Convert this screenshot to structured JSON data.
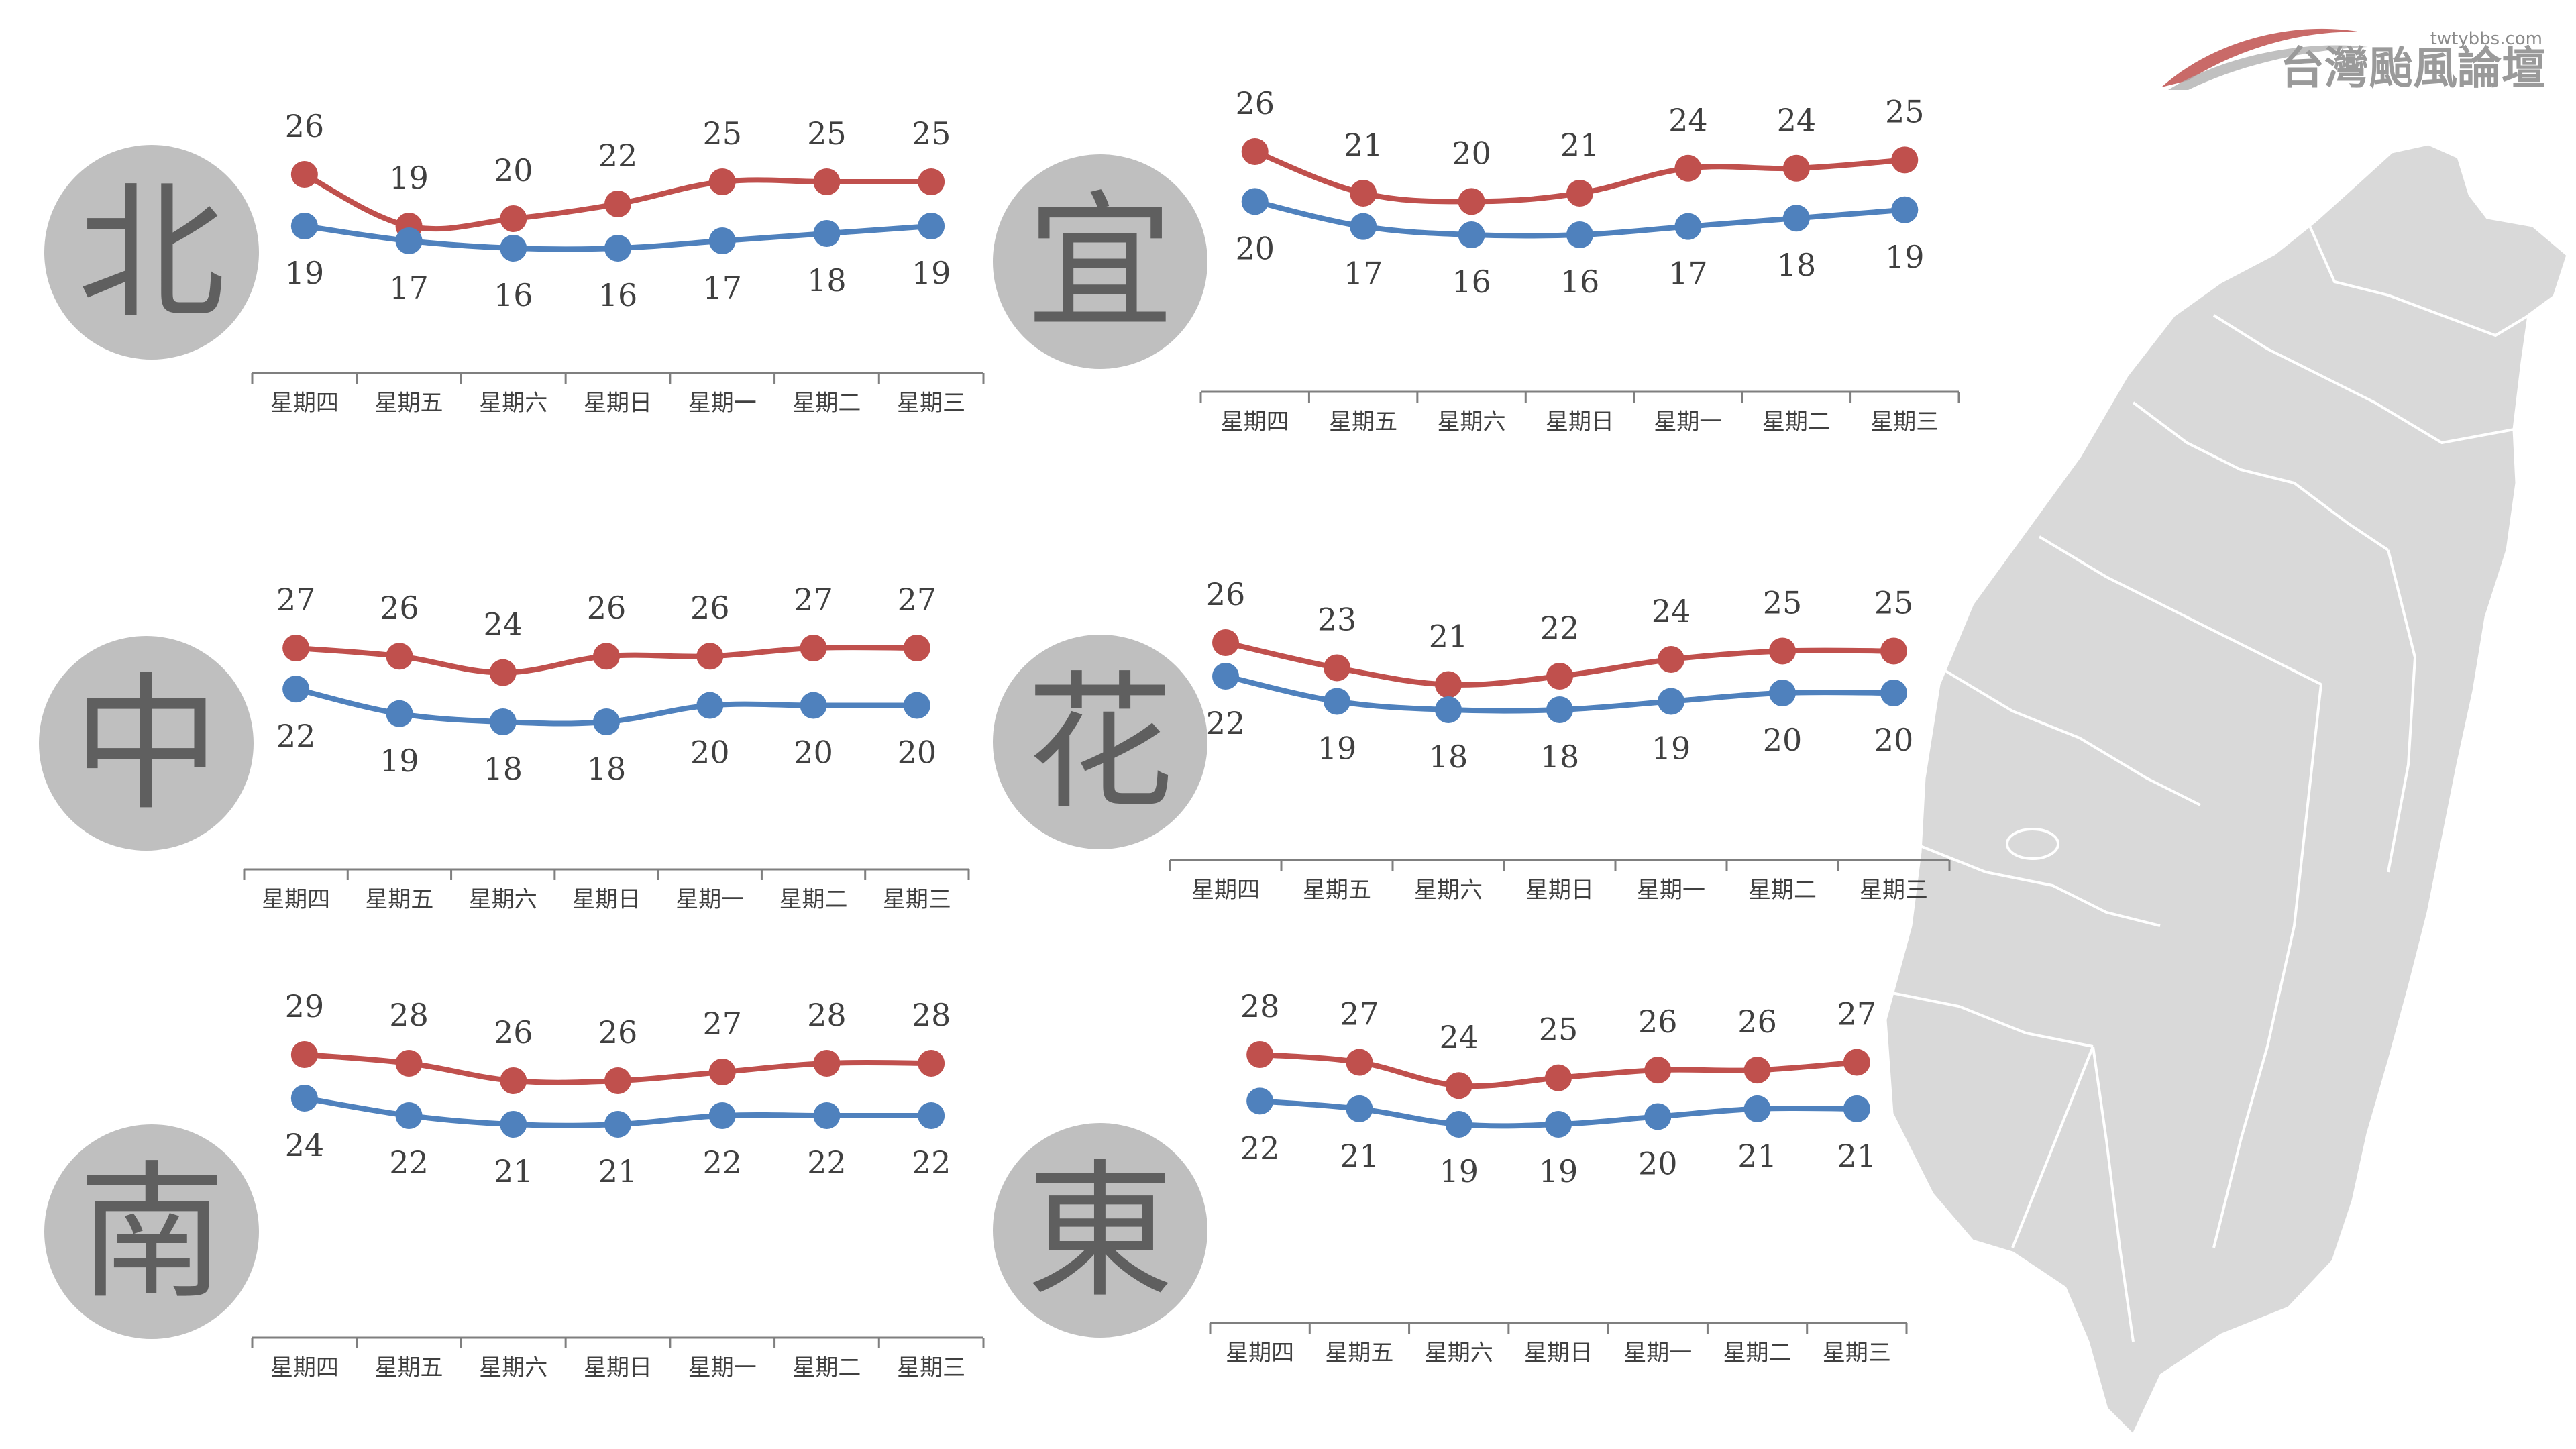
{
  "logo": {
    "url": "twtybbs.com",
    "name": "台灣颱風論壇"
  },
  "colors": {
    "high": "#c0504d",
    "low": "#4f81bd",
    "circle": "#bfbfbf",
    "axis": "#7f7f7f",
    "map_fill": "#d9d9d9",
    "map_border": "#ffffff"
  },
  "chart_data": [
    {
      "type": "line",
      "region": "北",
      "categories": [
        "星期四",
        "星期五",
        "星期六",
        "星期日",
        "星期一",
        "星期二",
        "星期三"
      ],
      "series": [
        {
          "values": [
            26,
            19,
            20,
            22,
            25,
            25,
            25
          ]
        },
        {
          "values": [
            19,
            17,
            16,
            16,
            17,
            18,
            19
          ]
        }
      ]
    },
    {
      "type": "line",
      "region": "宜",
      "categories": [
        "星期四",
        "星期五",
        "星期六",
        "星期日",
        "星期一",
        "星期二",
        "星期三"
      ],
      "series": [
        {
          "values": [
            26,
            21,
            20,
            21,
            24,
            24,
            25
          ]
        },
        {
          "values": [
            20,
            17,
            16,
            16,
            17,
            18,
            19
          ]
        }
      ]
    },
    {
      "type": "line",
      "region": "中",
      "categories": [
        "星期四",
        "星期五",
        "星期六",
        "星期日",
        "星期一",
        "星期二",
        "星期三"
      ],
      "series": [
        {
          "values": [
            27,
            26,
            24,
            26,
            26,
            27,
            27
          ]
        },
        {
          "values": [
            22,
            19,
            18,
            18,
            20,
            20,
            20
          ]
        }
      ]
    },
    {
      "type": "line",
      "region": "花",
      "categories": [
        "星期四",
        "星期五",
        "星期六",
        "星期日",
        "星期一",
        "星期二",
        "星期三"
      ],
      "series": [
        {
          "values": [
            26,
            23,
            21,
            22,
            24,
            25,
            25
          ]
        },
        {
          "values": [
            22,
            19,
            18,
            18,
            19,
            20,
            20
          ]
        }
      ]
    },
    {
      "type": "line",
      "region": "南",
      "categories": [
        "星期四",
        "星期五",
        "星期六",
        "星期日",
        "星期一",
        "星期二",
        "星期三"
      ],
      "series": [
        {
          "values": [
            29,
            28,
            26,
            26,
            27,
            28,
            28
          ]
        },
        {
          "values": [
            24,
            22,
            21,
            21,
            22,
            22,
            22
          ]
        }
      ]
    },
    {
      "type": "line",
      "region": "東",
      "categories": [
        "星期四",
        "星期五",
        "星期六",
        "星期日",
        "星期一",
        "星期二",
        "星期三"
      ],
      "series": [
        {
          "values": [
            28,
            27,
            24,
            25,
            26,
            26,
            27
          ]
        },
        {
          "values": [
            22,
            21,
            19,
            19,
            20,
            21,
            21
          ]
        }
      ]
    }
  ]
}
